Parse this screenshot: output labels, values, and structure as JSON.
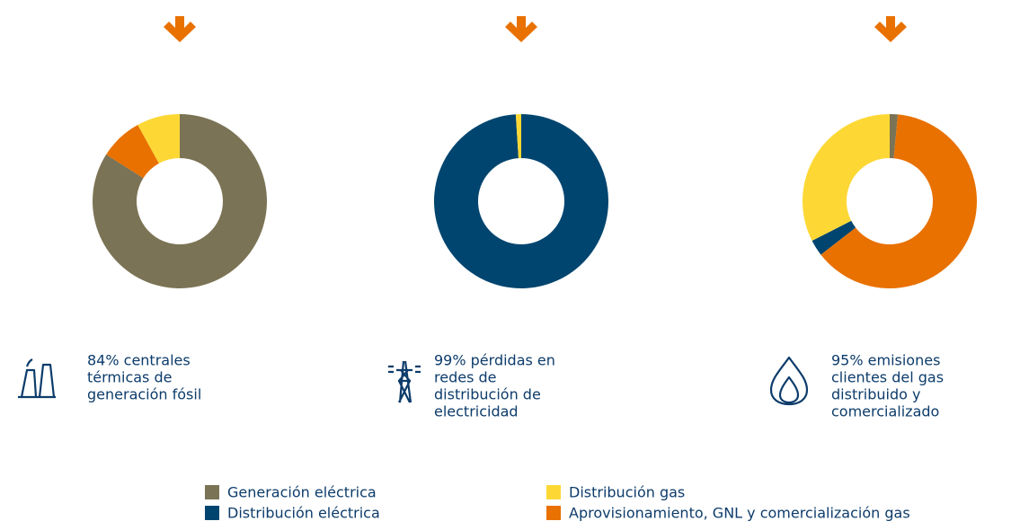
{
  "chart_data": [
    {
      "type": "pie",
      "donut": true,
      "values": [
        84,
        8,
        8
      ],
      "colors": [
        "#7b7355",
        "#e87100",
        "#fdd835"
      ],
      "caption": [
        "84% centrales",
        "térmicas de",
        "generación fósil"
      ]
    },
    {
      "type": "pie",
      "donut": true,
      "values": [
        99,
        1
      ],
      "colors": [
        "#00456f",
        "#fdd835"
      ],
      "caption": [
        "99% pérdidas en",
        "redes de",
        "distribución de",
        "electricidad"
      ]
    },
    {
      "type": "pie",
      "donut": true,
      "values": [
        1.5,
        63,
        3,
        32.5
      ],
      "colors": [
        "#7b7355",
        "#e87100",
        "#00456f",
        "#fdd835"
      ],
      "caption": [
        "95% emisiones",
        "clientes del gas",
        "distribuido y",
        "comercializado"
      ]
    }
  ],
  "legend": [
    {
      "name": "Generación eléctrica",
      "color": "#7b7355"
    },
    {
      "name": "Distribución eléctrica",
      "color": "#00456f"
    },
    {
      "name": "Distribución gas",
      "color": "#fdd835"
    },
    {
      "name": "Aprovisionamiento, GNL y comercialización gas",
      "color": "#e87100"
    }
  ]
}
